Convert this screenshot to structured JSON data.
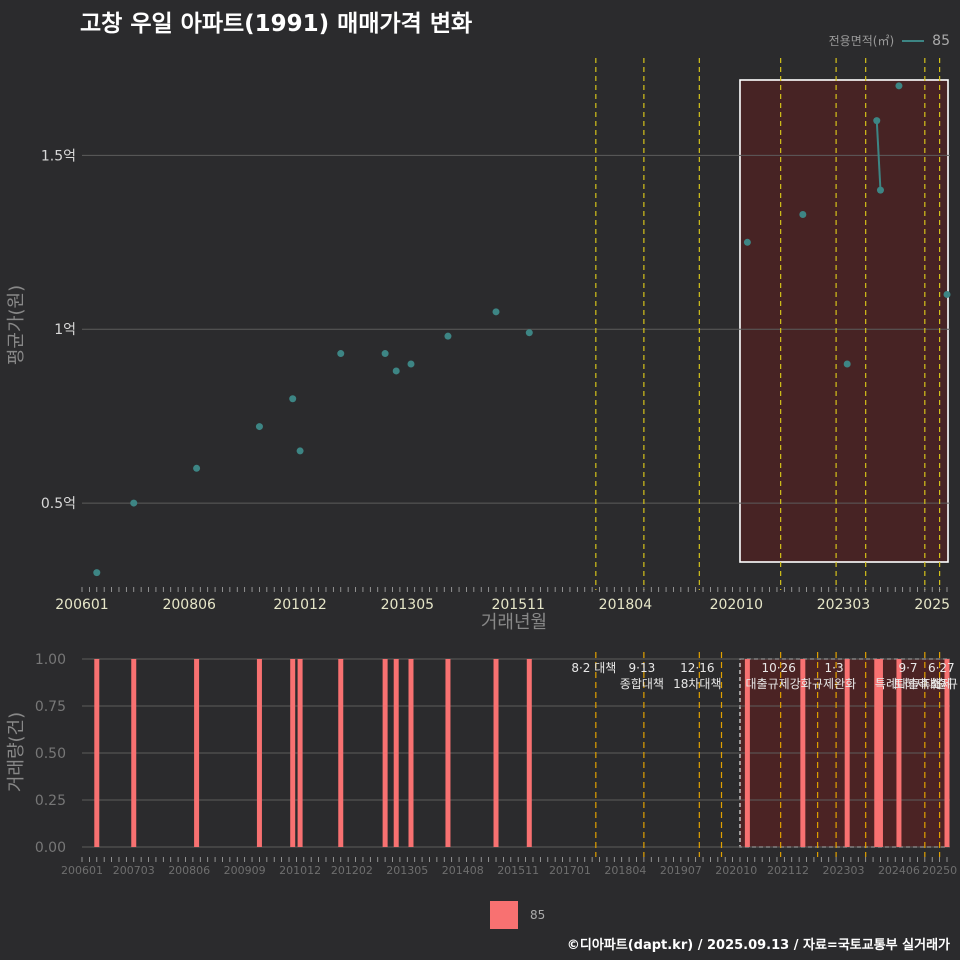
{
  "title": "고창 우일 아파트(1991) 매매가격 변화",
  "legend": {
    "title": "전용면적(㎡)",
    "series_label": "85"
  },
  "footer": "©디아파트(dapt.kr) / 2025.09.13 / 자료=국토교통부 실거래가",
  "colors": {
    "line": "#3d8584",
    "bar": "#f87171",
    "policy": "#d4c21a",
    "highlight": "#ffffff"
  },
  "chart_data": [
    {
      "type": "scatter",
      "title": "고창 우일 아파트(1991) 매매가격 변화",
      "xlabel": "거래년월",
      "ylabel": "평균가(원)",
      "xlim": [
        "2006-01",
        "2025-07"
      ],
      "ylim": [
        0.25,
        1.78
      ],
      "y_unit": "억",
      "y_ticks": [
        {
          "v": 0.5,
          "label": "0.5억"
        },
        {
          "v": 1.0,
          "label": "1억"
        },
        {
          "v": 1.5,
          "label": "1.5억"
        }
      ],
      "x_ticks": [
        "200601",
        "200806",
        "201012",
        "201305",
        "201511",
        "201804",
        "202010",
        "202303",
        "2025"
      ],
      "series": [
        {
          "name": "85",
          "points": [
            {
              "x": "2006-05",
              "y": 0.3
            },
            {
              "x": "2007-03",
              "y": 0.5
            },
            {
              "x": "2008-08",
              "y": 0.6
            },
            {
              "x": "2010-01",
              "y": 0.72
            },
            {
              "x": "2010-10",
              "y": 0.8
            },
            {
              "x": "2010-12",
              "y": 0.65
            },
            {
              "x": "2011-11",
              "y": 0.93
            },
            {
              "x": "2012-11",
              "y": 0.93
            },
            {
              "x": "2013-02",
              "y": 0.88
            },
            {
              "x": "2013-06",
              "y": 0.9
            },
            {
              "x": "2014-04",
              "y": 0.98
            },
            {
              "x": "2015-05",
              "y": 1.05
            },
            {
              "x": "2016-02",
              "y": 0.99
            },
            {
              "x": "2021-01",
              "y": 1.25
            },
            {
              "x": "2022-04",
              "y": 1.33
            },
            {
              "x": "2023-04",
              "y": 0.9
            },
            {
              "x": "2023-12",
              "y": 1.6
            },
            {
              "x": "2024-01",
              "y": 1.4
            },
            {
              "x": "2024-06",
              "y": 1.7
            },
            {
              "x": "2025-07",
              "y": 1.1
            }
          ],
          "line_segments": [
            [
              {
                "x": "2023-12",
                "y": 1.6
              },
              {
                "x": "2024-01",
                "y": 1.4
              }
            ]
          ]
        }
      ],
      "policy_lines": [
        "2017-08",
        "2018-09",
        "2019-12",
        "2021-10",
        "2023-01",
        "2023-09",
        "2025-01",
        "2025-05"
      ],
      "highlight_range": {
        "start": "2020-11",
        "end": "2025-07"
      }
    },
    {
      "type": "bar",
      "xlabel": "",
      "ylabel": "거래량(건)",
      "ylim": [
        0,
        1.0
      ],
      "y_ticks": [
        "0.00",
        "0.25",
        "0.50",
        "0.75",
        "1.00"
      ],
      "x_ticks": [
        "200601",
        "200703",
        "200806",
        "200909",
        "201012",
        "201202",
        "201305",
        "201408",
        "201511",
        "201701",
        "201804",
        "201907",
        "202010",
        "202112",
        "202303",
        "202406",
        "20250"
      ],
      "series": [
        {
          "name": "85",
          "bars": [
            {
              "x": "2006-05",
              "v": 1
            },
            {
              "x": "2007-03",
              "v": 1
            },
            {
              "x": "2008-08",
              "v": 1
            },
            {
              "x": "2010-01",
              "v": 1
            },
            {
              "x": "2010-10",
              "v": 1
            },
            {
              "x": "2010-12",
              "v": 1
            },
            {
              "x": "2011-11",
              "v": 1
            },
            {
              "x": "2012-11",
              "v": 1
            },
            {
              "x": "2013-02",
              "v": 1
            },
            {
              "x": "2013-06",
              "v": 1
            },
            {
              "x": "2014-04",
              "v": 1
            },
            {
              "x": "2015-05",
              "v": 1
            },
            {
              "x": "2016-02",
              "v": 1
            },
            {
              "x": "2021-01",
              "v": 1
            },
            {
              "x": "2022-04",
              "v": 1
            },
            {
              "x": "2023-04",
              "v": 1
            },
            {
              "x": "2023-12",
              "v": 1
            },
            {
              "x": "2024-01",
              "v": 1
            },
            {
              "x": "2024-06",
              "v": 1
            },
            {
              "x": "2025-07",
              "v": 1
            }
          ]
        }
      ],
      "policy_lines": [
        "2017-08",
        "2018-09",
        "2019-12",
        "2020-06",
        "2021-10",
        "2022-08",
        "2023-01",
        "2023-09",
        "2025-01",
        "2025-05"
      ],
      "policy_labels": [
        {
          "x": "2017-08",
          "lines": [
            "8·2 대책"
          ]
        },
        {
          "x": "2018-09",
          "lines": [
            "9·13",
            "종합대책"
          ]
        },
        {
          "x": "2019-12",
          "lines": [
            "12·16",
            "18차대책"
          ]
        },
        {
          "x": "2021-10",
          "lines": [
            "10·26",
            "대출규제강화"
          ]
        },
        {
          "x": "2023-01",
          "lines": [
            "1·3",
            "규제완화"
          ]
        },
        {
          "x": "2024-09",
          "lines": [
            "9·7",
            "특례대출축소"
          ]
        },
        {
          "x": "2025-01",
          "lines": [
            "",
            "토허제 해제"
          ]
        },
        {
          "x": "2025-06",
          "lines": [
            "6·27",
            "대출규"
          ]
        }
      ],
      "highlight_range": {
        "start": "2020-11",
        "end": "2025-07"
      }
    }
  ]
}
